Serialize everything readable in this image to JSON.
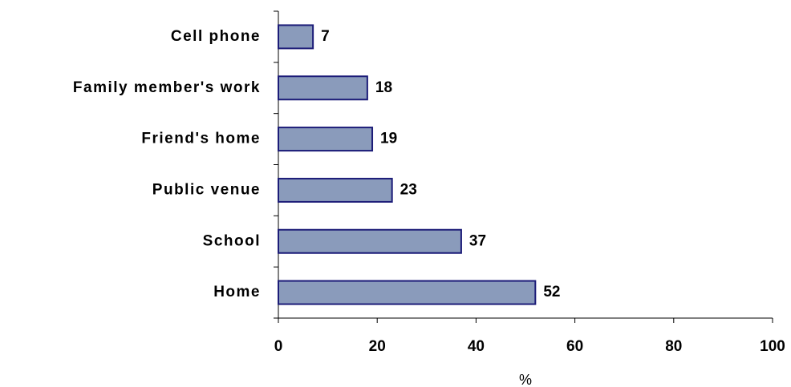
{
  "chart_data": {
    "type": "bar",
    "orientation": "horizontal",
    "categories": [
      "Cell phone",
      "Family member's work",
      "Friend's home",
      "Public venue",
      "School",
      "Home"
    ],
    "values": [
      7,
      18,
      19,
      23,
      37,
      52
    ],
    "color": "#8a9bbb",
    "edge_color": "#1c1c78",
    "xlabel": "%",
    "xlim": [
      0,
      100
    ],
    "xticks": [
      0,
      20,
      40,
      60,
      80,
      100
    ],
    "grid": false
  }
}
